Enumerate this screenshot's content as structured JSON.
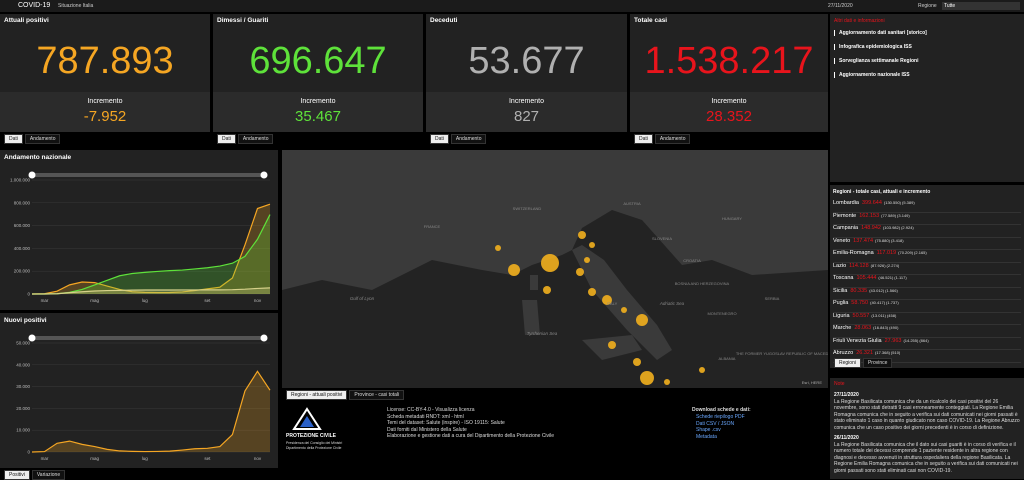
{
  "header": {
    "title": "COVID-19",
    "subtitle": "Situazione Italia",
    "date": "27/11/2020",
    "region_label": "Regione",
    "region_value": "Tutte"
  },
  "kpis": [
    {
      "title": "Attuali positivi",
      "value": "787.893",
      "increment_label": "Incremento",
      "increment": "-7.952",
      "color": "#f5a623"
    },
    {
      "title": "Dimessi / Guariti",
      "value": "696.647",
      "increment_label": "Incremento",
      "increment": "35.467",
      "color": "#5ee23a"
    },
    {
      "title": "Deceduti",
      "value": "53.677",
      "increment_label": "Incremento",
      "increment": "827",
      "color": "#b0b0b0"
    },
    {
      "title": "Totale casi",
      "value": "1.538.217",
      "increment_label": "Incremento",
      "increment": "28.352",
      "color": "#e8141c"
    }
  ],
  "kpi_tabs": [
    "Dati",
    "Andamento"
  ],
  "links": {
    "title": "Altri dati e informazioni",
    "items": [
      "Aggiornamento dati sanitari [storico]",
      "Infografica epidemiologica ISS",
      "Sorveglianza settimanale Regioni",
      "Aggiornamento nazionale ISS"
    ]
  },
  "charts": [
    {
      "type": "line",
      "title": "Andamento nazionale",
      "categories": [
        null,
        "mar",
        null,
        null,
        null,
        "mag",
        null,
        null,
        null,
        "lug",
        null,
        null,
        null,
        null,
        "set",
        null,
        null,
        null,
        "nov",
        null
      ],
      "ylim": [
        0,
        1000000
      ],
      "yticks": [
        0,
        {
          "value": 200000,
          "label": "200.000"
        },
        {
          "value": 400000,
          "label": "400.000"
        },
        {
          "value": 600000,
          "label": "600.000"
        },
        {
          "value": 800000,
          "label": "800.000"
        },
        {
          "value": 1000000,
          "label": "1.000.000"
        }
      ],
      "series": [
        {
          "color": "#f5a623",
          "values": [
            0,
            2000,
            25000,
            80000,
            105000,
            100000,
            70000,
            40000,
            20000,
            14000,
            12500,
            13000,
            18000,
            30000,
            45000,
            60000,
            140000,
            430000,
            750000,
            787893
          ]
        },
        {
          "color": "#5ee23a",
          "values": [
            0,
            100,
            2000,
            15000,
            40000,
            80000,
            120000,
            160000,
            180000,
            190000,
            198000,
            205000,
            210000,
            220000,
            230000,
            245000,
            270000,
            330000,
            480000,
            696647
          ]
        },
        {
          "color": "#d6d18a",
          "values": [
            0,
            50,
            2500,
            12000,
            20000,
            26000,
            30000,
            32000,
            34000,
            34800,
            35100,
            35300,
            35500,
            35700,
            36000,
            36500,
            38000,
            42000,
            49000,
            53677
          ]
        }
      ]
    },
    {
      "type": "line",
      "title": "Nuovi positivi",
      "categories": [
        null,
        "mar",
        null,
        null,
        null,
        "mag",
        null,
        null,
        null,
        "lug",
        null,
        null,
        null,
        null,
        "set",
        null,
        null,
        null,
        "nov",
        null
      ],
      "ylim": [
        0,
        50000
      ],
      "yticks": [
        0,
        {
          "value": 10000,
          "label": "10.000"
        },
        {
          "value": 20000,
          "label": "20.000"
        },
        {
          "value": 30000,
          "label": "30.000"
        },
        {
          "value": 40000,
          "label": "40.000"
        },
        {
          "value": 50000,
          "label": "50.000"
        }
      ],
      "series": [
        {
          "color": "#f5a623",
          "values": [
            0,
            200,
            4000,
            5000,
            3500,
            2500,
            1200,
            500,
            300,
            200,
            250,
            400,
            900,
            1500,
            1700,
            2500,
            8000,
            28000,
            37000,
            28352
          ]
        }
      ]
    }
  ],
  "chart_tabs": [
    "Positivi",
    "Variazione"
  ],
  "map": {
    "labels": [
      "FRANCE",
      "SWITZERLAND",
      "AUSTRIA",
      "HUNGARY",
      "SLOVENIA",
      "CROATIA",
      "BOSNIA AND HERZEGOVINA",
      "SERBIA",
      "MONTENEGRO",
      "ALBANIA",
      "THE FORMER YUGOSLAV REPUBLIC OF MACEDONIA",
      "ITALY",
      "Gulf of Lyon",
      "Adriatic Sea",
      "Tyrrhenian Sea"
    ],
    "attribution": "Esri, HERE",
    "tabs": [
      "Regioni - attuali positivi",
      "Province - casi totali"
    ]
  },
  "regions": {
    "title": "Regioni - totale casi, attuali e incremento",
    "rows": [
      {
        "name": "Lombardia",
        "total": "399.644",
        "current": "(130.550)",
        "increment": "(5.389)"
      },
      {
        "name": "Piemonte",
        "total": "162.153",
        "current": "(77.589)",
        "increment": "(3.149)"
      },
      {
        "name": "Campania",
        "total": "148.942",
        "current": "(103.982)",
        "increment": "(2.924)"
      },
      {
        "name": "Veneto",
        "total": "137.474",
        "current": "(75.880)",
        "increment": "(3.418)"
      },
      {
        "name": "Emilia-Romagna",
        "total": "117.019",
        "current": "(70.209)",
        "increment": "(2.165)"
      },
      {
        "name": "Lazio",
        "total": "114.128",
        "current": "(87.926)",
        "increment": "(2.274)"
      },
      {
        "name": "Toscana",
        "total": "105.444",
        "current": "(46.521)",
        "increment": "(1.117)"
      },
      {
        "name": "Sicilia",
        "total": "80.335",
        "current": "(43.012)",
        "increment": "(1.566)"
      },
      {
        "name": "Puglia",
        "total": "58.750",
        "current": "(40.417)",
        "increment": "(1.737)"
      },
      {
        "name": "Liguria",
        "total": "50.557",
        "current": "(13.011)",
        "increment": "(458)"
      },
      {
        "name": "Marche",
        "total": "28.063",
        "current": "(16.843)",
        "increment": "(490)"
      },
      {
        "name": "Friuli Venezia Giulia",
        "total": "27.963",
        "current": "(14.255)",
        "increment": "(864)"
      },
      {
        "name": "Abruzzo",
        "total": "26.321",
        "current": "(17.368)",
        "increment": "(510)"
      }
    ],
    "tabs": [
      "Regioni",
      "Province"
    ]
  },
  "footer": {
    "logo": "PROTEZIONE CIVILE",
    "logo_sub1": "Presidenza del Consiglio dei Ministri",
    "logo_sub2": "Dipartimento della Protezione Civile",
    "info": [
      "License: CC-BY-4.0 - Visualizza licenza",
      "Scheda metadati RNDT: xml - html",
      "Temi del dataset: Salute (inspire) - ISO 19115: Salute",
      "Dati forniti dal Ministero della Salute",
      "Elaborazione e gestione dati a cura del Dipartimento della Protezione Civile"
    ],
    "download_title": "Download schede e dati:",
    "downloads": [
      "Schede riepilogo PDF",
      "Dati CSV / JSON",
      "Shape .csv",
      "Metadata"
    ]
  },
  "notes": {
    "title": "Note",
    "entries": [
      {
        "date": "27/11/2020",
        "text": "La Regione Basilicata comunica che da un ricalcolo dei casi positivi del 26 novembre, sono stati detratti 9 casi erroneamente conteggiati. La Regione Emilia Romagna comunica che in seguito a verifica sui dati comunicati nei giorni passati è stato eliminato 1 caso in quanto giudicato non caso COVID-19. La Regione Abruzzo comunica che un caso positivo dei giorni precedenti è in corso di definizione."
      },
      {
        "date": "26/11/2020",
        "text": "La Regione Basilicata comunica che il dato sui casi guariti è in corso di verifica e il numero totale dei decessi comprende 1 paziente residente in altra regione con diagnosi e decesso avvenuti in struttura ospedaliera della regione Basilicata. La Regione Emilia Romagna comunica che in seguito a verifica sui dati comunicati nei giorni passati sono stati eliminati casi non COVID-19."
      }
    ]
  }
}
